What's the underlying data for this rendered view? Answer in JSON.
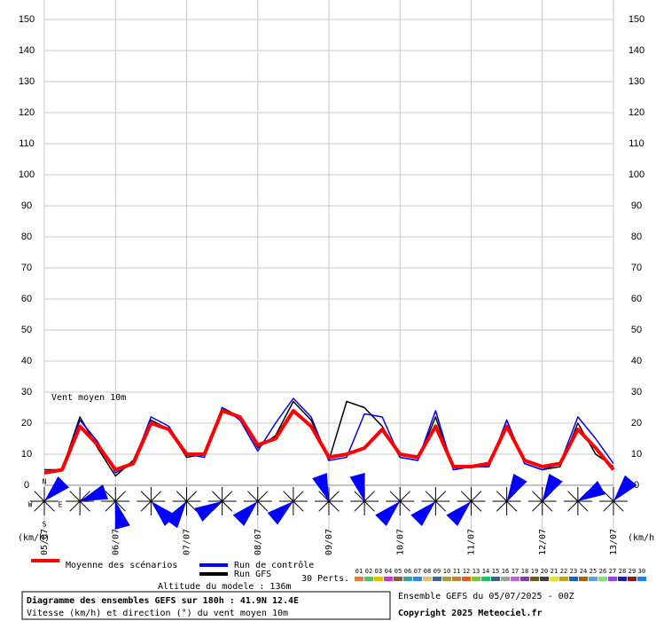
{
  "chart_data": {
    "type": "line",
    "annotation": "Vent moyen 10m",
    "y_unit_left": "(km/h)",
    "y_unit_right": "(km/h)",
    "categories": [
      "05/07",
      null,
      null,
      null,
      "06/07",
      null,
      null,
      null,
      "07/07",
      null,
      null,
      null,
      "08/07",
      null,
      null,
      null,
      "09/07",
      null,
      null,
      null,
      "10/07",
      null,
      null,
      null,
      "11/07",
      null,
      null,
      null,
      "12/07",
      null,
      null,
      null,
      "13/07"
    ],
    "series": [
      {
        "name": "Moyenne des scénarios",
        "color": "#ff0000",
        "width": 4,
        "values": [
          4,
          5,
          19,
          13,
          5,
          7,
          20,
          18,
          10,
          10,
          24,
          22,
          13,
          15,
          24,
          19,
          9,
          10,
          12,
          18,
          10,
          9,
          19,
          6,
          6,
          7,
          19,
          8,
          6,
          7,
          18,
          12,
          5
        ]
      },
      {
        "name": "Run de contrôle",
        "color": "#0000ff",
        "width": 1.5,
        "values": [
          4,
          5,
          21,
          14,
          4,
          7,
          22,
          19,
          10,
          9,
          25,
          21,
          11,
          20,
          28,
          22,
          8,
          9,
          23,
          22,
          9,
          8,
          24,
          5,
          6,
          6,
          21,
          7,
          5,
          7,
          22,
          15,
          7
        ]
      },
      {
        "name": "Run GFS",
        "color": "#000000",
        "width": 1.5,
        "values": [
          5,
          5,
          22,
          12,
          3,
          8,
          21,
          18,
          9,
          10,
          25,
          22,
          12,
          16,
          27,
          21,
          8,
          27,
          25,
          19,
          9,
          8,
          22,
          5,
          6,
          6,
          21,
          7,
          5,
          6,
          20,
          10,
          6
        ]
      }
    ],
    "ylim": [
      0,
      150
    ],
    "yticks": [
      0,
      10,
      20,
      30,
      40,
      50,
      60,
      70,
      80,
      90,
      100,
      110,
      120,
      130,
      140,
      150
    ],
    "grid": true,
    "wind_directions": [
      45,
      70,
      165,
      135,
      215,
      240,
      225,
      230,
      340,
      345,
      225,
      225,
      225,
      30,
      30,
      60,
      40
    ],
    "compass": [
      "N",
      "W",
      "E",
      "S"
    ],
    "perturbations_label": "30 Perts.",
    "perturbations": [
      {
        "name": "01",
        "color": "#e08040"
      },
      {
        "name": "02",
        "color": "#60c060"
      },
      {
        "name": "03",
        "color": "#e0c000"
      },
      {
        "name": "04",
        "color": "#c040c0"
      },
      {
        "name": "05",
        "color": "#806040"
      },
      {
        "name": "06",
        "color": "#40a0a0"
      },
      {
        "name": "07",
        "color": "#4080e0"
      },
      {
        "name": "08",
        "color": "#e0c080"
      },
      {
        "name": "09",
        "color": "#4060a0"
      },
      {
        "name": "10",
        "color": "#a0a040"
      },
      {
        "name": "11",
        "color": "#c08040"
      },
      {
        "name": "12",
        "color": "#e06020"
      },
      {
        "name": "13",
        "color": "#80c040"
      },
      {
        "name": "14",
        "color": "#20c060"
      },
      {
        "name": "15",
        "color": "#406080"
      },
      {
        "name": "16",
        "color": "#a0a0a0"
      },
      {
        "name": "17",
        "color": "#c060e0"
      },
      {
        "name": "18",
        "color": "#8040a0"
      },
      {
        "name": "19",
        "color": "#606020"
      },
      {
        "name": "20",
        "color": "#404040"
      },
      {
        "name": "21",
        "color": "#e0e040"
      },
      {
        "name": "22",
        "color": "#c0a020"
      },
      {
        "name": "23",
        "color": "#2060c0"
      },
      {
        "name": "24",
        "color": "#a06020"
      },
      {
        "name": "25",
        "color": "#60a0e0"
      },
      {
        "name": "26",
        "color": "#80e080"
      },
      {
        "name": "27",
        "color": "#a040e0"
      },
      {
        "name": "28",
        "color": "#2020a0"
      },
      {
        "name": "29",
        "color": "#802020"
      },
      {
        "name": "30",
        "color": "#2080e0"
      }
    ],
    "altitude": "Altitude du modele : 136m",
    "title": "Diagramme des ensembles GEFS sur 180h : 41.9N 12.4E",
    "subtitle": "Vitesse (km/h) et direction (°) du vent moyen 10m",
    "run_info": "Ensemble GEFS du 05/07/2025 - 00Z",
    "copyright": "Copyright 2025 Meteociel.fr"
  }
}
